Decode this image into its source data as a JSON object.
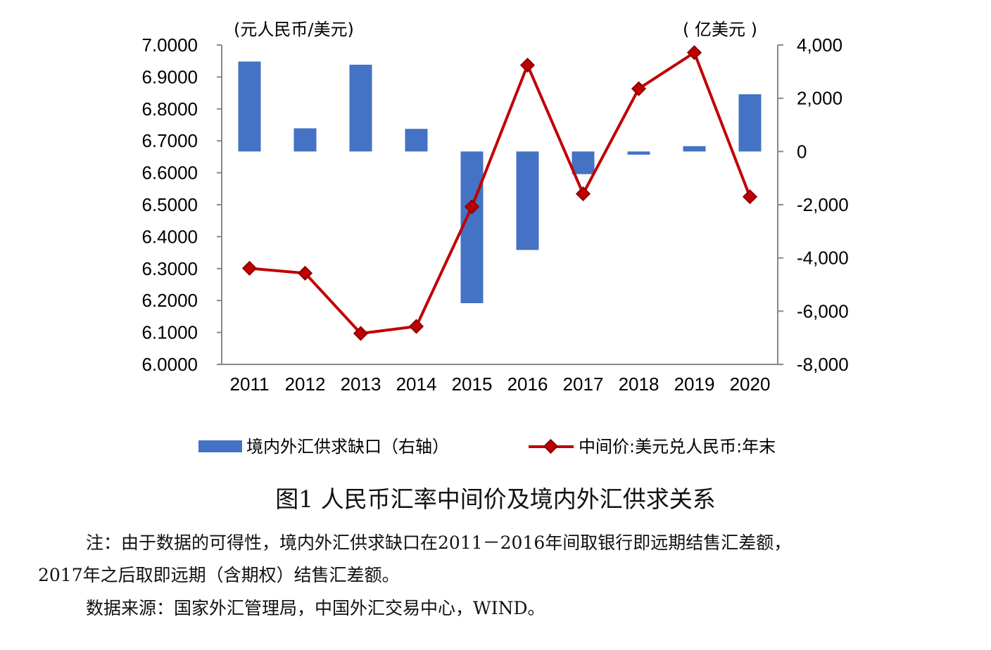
{
  "chart_data": {
    "type": "bar+line",
    "categories": [
      "2011",
      "2012",
      "2013",
      "2014",
      "2015",
      "2016",
      "2017",
      "2018",
      "2019",
      "2020"
    ],
    "left_axis": {
      "unit_label": "(元人民币/美元)",
      "min": 6.0,
      "max": 7.0,
      "step": 0.1,
      "tick_labels": [
        "7.0000",
        "6.9000",
        "6.8000",
        "6.7000",
        "6.6000",
        "6.5000",
        "6.4000",
        "6.3000",
        "6.2000",
        "6.1000",
        "6.0000"
      ]
    },
    "right_axis": {
      "unit_label": "( 亿美元 )",
      "min": -8000,
      "max": 4000,
      "step": 2000,
      "tick_labels": [
        "4,000",
        "2,000",
        "0",
        "-2,000",
        "-4,000",
        "-6,000",
        "-8,000"
      ]
    },
    "series": [
      {
        "name": "境内外汇供求缺口（右轴）",
        "type": "bar",
        "axis": "right",
        "color": "#4472C4",
        "values": [
          3380,
          870,
          3260,
          850,
          -5700,
          -3700,
          -850,
          -120,
          200,
          2150
        ]
      },
      {
        "name": "中间价:美元兑人民币:年末",
        "type": "line",
        "axis": "left",
        "color": "#C00000",
        "values": [
          6.3009,
          6.2855,
          6.0969,
          6.119,
          6.4936,
          6.937,
          6.5342,
          6.8632,
          6.9762,
          6.5249
        ]
      }
    ]
  },
  "caption": "图1  人民币汇率中间价及境内外汇供求关系",
  "note_line1": "注：由于数据的可得性，境内外汇供求缺口在2011－2016年间取银行即远期结售汇差额，",
  "note_line2": "2017年之后取即远期（含期权）结售汇差额。",
  "source_line": "数据来源：国家外汇管理局，中国外汇交易中心，WIND。"
}
